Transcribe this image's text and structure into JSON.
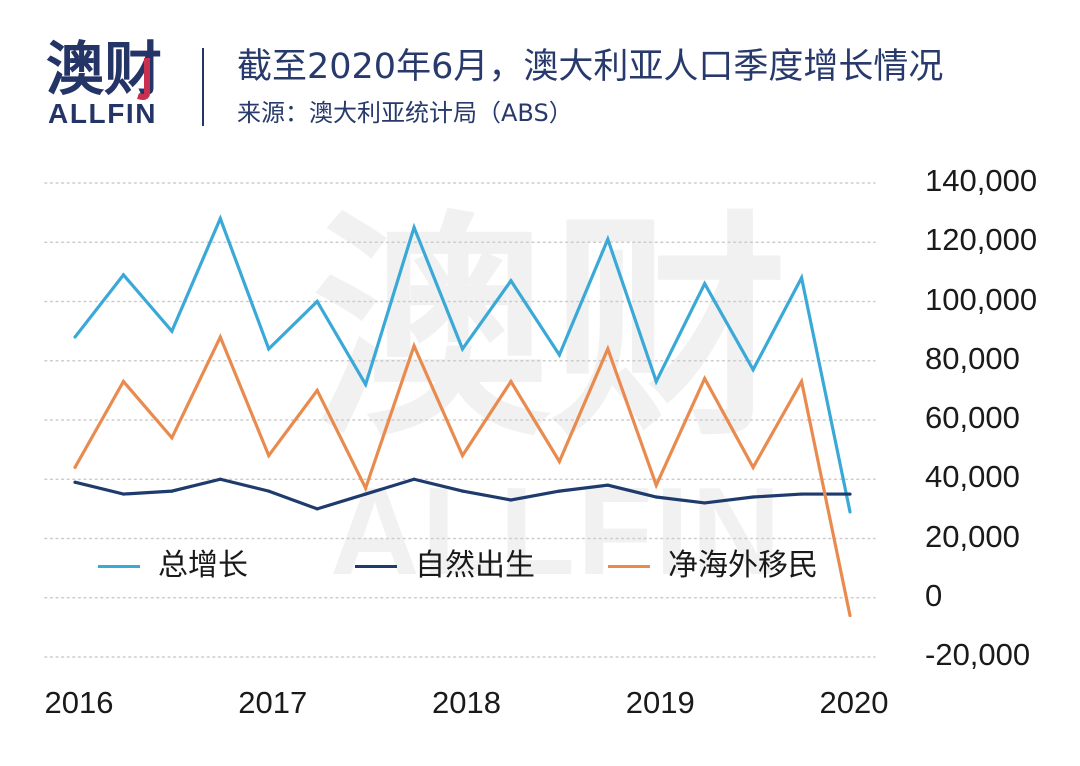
{
  "brand": {
    "name_cn": "澳财",
    "name_en": "ALLFIN"
  },
  "colors": {
    "brand": "#243466",
    "accent": "#c9304f",
    "watermark": "#f1f1f1",
    "gridline": "#cccccc",
    "text": "#1a1a1a"
  },
  "chart_data": {
    "type": "line",
    "title": "截至2020年6月，澳大利亚人口季度增长情况",
    "subtitle": "来源：澳大利亚统计局（ABS）",
    "categories": [
      "2016",
      "",
      "",
      "",
      "2017",
      "",
      "",
      "",
      "2018",
      "",
      "",
      "",
      "2019",
      "",
      "",
      "",
      "2020"
    ],
    "ylim": [
      -20000,
      140000
    ],
    "y_ticks": [
      140000,
      120000,
      100000,
      80000,
      60000,
      40000,
      20000,
      0,
      -20000
    ],
    "y_tick_labels": [
      "140,000",
      "120,000",
      "100,000",
      "80,000",
      "60,000",
      "40,000",
      "20,000",
      "0",
      "-20,000"
    ],
    "y_axis_side": "right",
    "grid": true,
    "grid_style": "dotted",
    "legend_position": "bottom-left",
    "series": [
      {
        "name": "总增长",
        "color": "#3aa9d7",
        "values": [
          88000,
          109000,
          90000,
          128000,
          84000,
          100000,
          72000,
          125000,
          84000,
          107000,
          82000,
          121000,
          73000,
          106000,
          77000,
          108000,
          29000
        ]
      },
      {
        "name": "自然出生",
        "color": "#1f3b6e",
        "values": [
          39000,
          35000,
          36000,
          40000,
          36000,
          30000,
          35000,
          40000,
          36000,
          33000,
          36000,
          38000,
          34000,
          32000,
          34000,
          35000,
          35000
        ]
      },
      {
        "name": "净海外移民",
        "color": "#e98b4e",
        "values": [
          44000,
          73000,
          54000,
          88000,
          48000,
          70000,
          37000,
          85000,
          48000,
          73000,
          46000,
          84000,
          38000,
          74000,
          44000,
          73000,
          -6000
        ]
      }
    ]
  }
}
